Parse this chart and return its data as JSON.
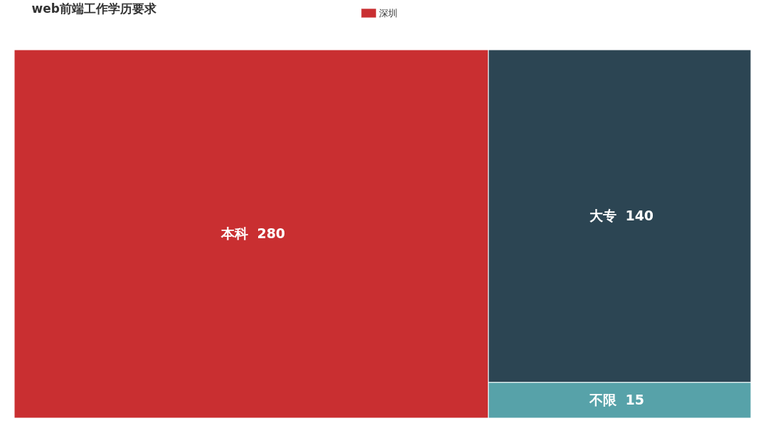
{
  "chart_data": {
    "type": "other",
    "title": "web前端工作学历要求",
    "legend": "top",
    "categories": [
      "本科",
      "大专",
      "不限"
    ],
    "series": [
      {
        "name": "深圳",
        "values": [
          280,
          140,
          15
        ]
      }
    ],
    "colors": [
      "#c92f31",
      "#2c4553",
      "#57a2a9"
    ],
    "data_labels": true
  }
}
